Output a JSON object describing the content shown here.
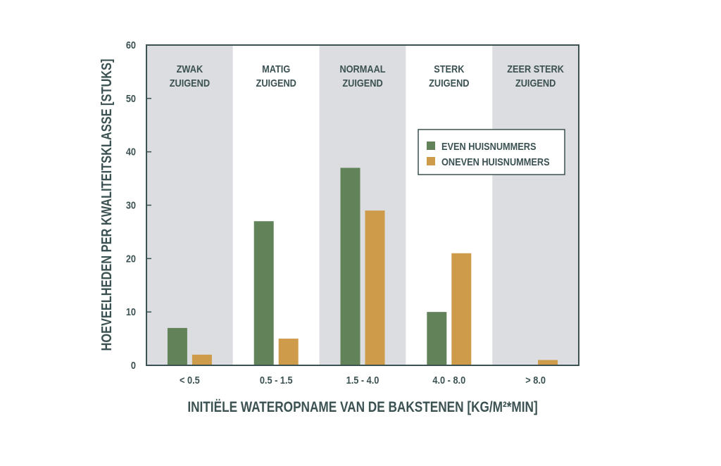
{
  "chart_data": {
    "type": "bar",
    "title": "",
    "xlabel": "INITIËLE WATEROPNAME VAN DE BAKSTENEN [KG/M²*MIN]",
    "ylabel": "HOEVEELHEDEN PER KWALITEITSKLASSE [STUKS]",
    "ylim": [
      0,
      60
    ],
    "yticks": [
      0,
      10,
      20,
      30,
      40,
      50,
      60
    ],
    "categories": [
      "< 0.5",
      "0.5 - 1.5",
      "1.5 - 4.0",
      "4.0 - 8.0",
      "> 8.0"
    ],
    "band_labels": [
      [
        "ZWAK",
        "ZUIGEND"
      ],
      [
        "MATIG",
        "ZUIGEND"
      ],
      [
        "NORMAAL",
        "ZUIGEND"
      ],
      [
        "STERK",
        "ZUIGEND"
      ],
      [
        "ZEER STERK",
        "ZUIGEND"
      ]
    ],
    "series": [
      {
        "name": "EVEN HUISNUMMERS",
        "color": "#62825a",
        "values": [
          7,
          27,
          37,
          10,
          0
        ]
      },
      {
        "name": "ONEVEN HUISNUMMERS",
        "color": "#cd9b4a",
        "values": [
          2,
          5,
          29,
          21,
          1
        ]
      }
    ],
    "band_colors": [
      "#dcdde0",
      "#ffffff"
    ],
    "axis_color": "#3b5152",
    "legend_position": "top-right",
    "grid": false
  }
}
